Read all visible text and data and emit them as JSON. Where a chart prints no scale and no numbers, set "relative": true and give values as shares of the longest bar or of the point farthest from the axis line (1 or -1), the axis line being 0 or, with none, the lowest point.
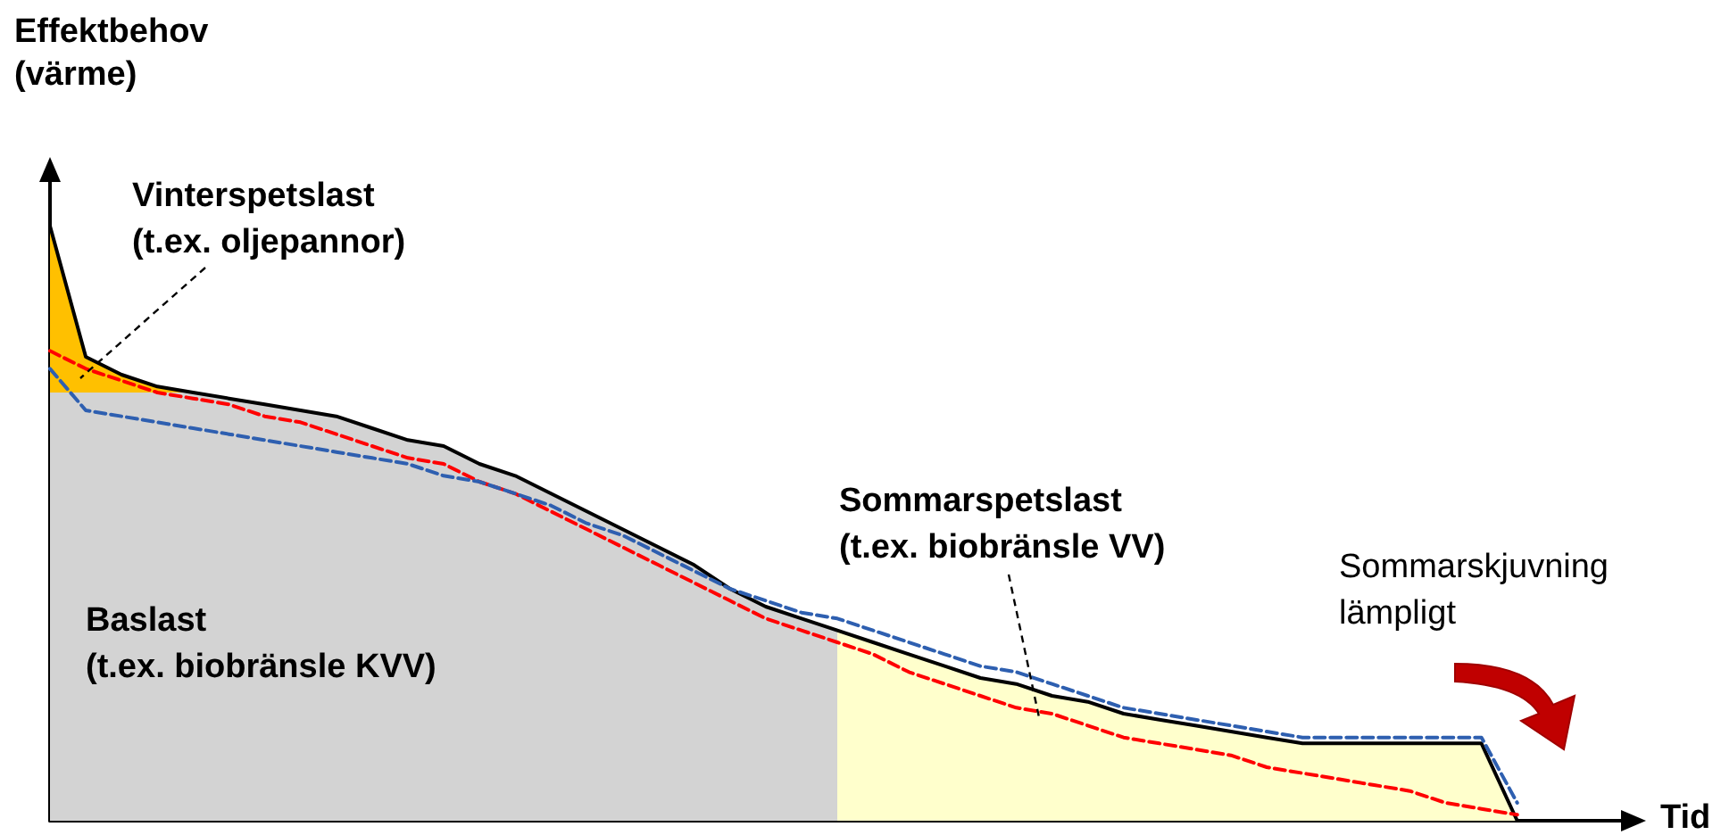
{
  "chart_data": {
    "type": "area",
    "relative": true,
    "ylabel": "Effektbehov\n(värme)",
    "xlabel": "Tid",
    "categories": [
      null,
      null,
      null,
      null,
      null,
      null,
      null,
      null,
      null,
      null,
      null,
      null,
      null,
      null,
      null,
      null,
      null,
      null,
      null,
      null,
      null,
      null,
      null,
      null,
      null,
      null,
      null,
      null,
      null,
      null,
      null,
      null,
      null,
      null,
      null,
      null,
      null,
      null,
      null,
      null,
      null,
      null,
      null,
      null,
      null
    ],
    "series": [
      {
        "color": "#ffc000",
        "values": [
          1.0,
          0.78,
          0.75,
          0.73,
          0.72,
          null,
          null,
          null,
          null,
          null,
          null,
          null,
          null,
          null,
          null,
          null,
          null,
          null,
          null,
          null,
          null,
          null,
          null,
          null,
          null,
          null,
          null,
          null,
          null,
          null,
          null,
          null,
          null,
          null,
          null,
          null,
          null,
          null,
          null,
          null,
          null,
          null,
          null,
          null,
          null
        ]
      },
      {
        "color": "#d3d3d3",
        "values": [
          0.72,
          0.72,
          0.72,
          0.72,
          0.72,
          0.71,
          0.7,
          0.69,
          0.68,
          0.66,
          0.64,
          0.63,
          0.6,
          0.58,
          0.55,
          0.52,
          0.49,
          0.46,
          0.43,
          0.39,
          0.36,
          0.34,
          0.32,
          null,
          null,
          null,
          null,
          null,
          null,
          null,
          null,
          null,
          null,
          null,
          null,
          null,
          null,
          null,
          null,
          null,
          null,
          null,
          null,
          null,
          null
        ]
      },
      {
        "color": "#ffffcc",
        "values": [
          null,
          null,
          null,
          null,
          null,
          null,
          null,
          null,
          null,
          null,
          null,
          null,
          null,
          null,
          null,
          null,
          null,
          null,
          null,
          null,
          null,
          null,
          0.32,
          0.3,
          0.28,
          0.26,
          0.24,
          0.23,
          0.21,
          0.2,
          0.18,
          0.17,
          0.16,
          0.15,
          0.14,
          0.13,
          0.13,
          0.13,
          0.13,
          0.13,
          0.13,
          0,
          null,
          null,
          null
        ]
      },
      {
        "type": "line",
        "color": "#000000",
        "values": [
          1.0,
          0.78,
          0.75,
          0.73,
          0.72,
          0.71,
          0.7,
          0.69,
          0.68,
          0.66,
          0.64,
          0.63,
          0.6,
          0.58,
          0.55,
          0.52,
          0.49,
          0.46,
          0.43,
          0.39,
          0.36,
          0.34,
          0.32,
          0.3,
          0.28,
          0.26,
          0.24,
          0.23,
          0.21,
          0.2,
          0.18,
          0.17,
          0.16,
          0.15,
          0.14,
          0.13,
          0.13,
          0.13,
          0.13,
          0.13,
          0.13,
          0,
          null,
          null,
          null
        ]
      },
      {
        "type": "line",
        "color": "#ff0000",
        "line_style": "dashed",
        "values": [
          0.79,
          0.76,
          0.74,
          0.72,
          0.71,
          0.7,
          0.68,
          0.67,
          0.65,
          0.63,
          0.61,
          0.6,
          0.57,
          0.55,
          0.52,
          0.49,
          0.46,
          0.43,
          0.4,
          0.37,
          0.34,
          0.32,
          0.3,
          0.28,
          0.25,
          0.23,
          0.21,
          0.19,
          0.18,
          0.16,
          0.14,
          0.13,
          0.12,
          0.11,
          0.09,
          0.08,
          0.07,
          0.06,
          0.05,
          0.03,
          0.02,
          0.01,
          null,
          null,
          null
        ]
      },
      {
        "type": "line",
        "color": "#2e5fb0",
        "line_style": "dashed",
        "values": [
          0.76,
          0.69,
          0.68,
          0.67,
          0.66,
          0.65,
          0.64,
          0.63,
          0.62,
          0.61,
          0.6,
          0.58,
          0.57,
          0.55,
          0.53,
          0.5,
          0.48,
          0.45,
          0.42,
          0.39,
          0.37,
          0.35,
          0.34,
          0.32,
          0.3,
          0.28,
          0.26,
          0.25,
          0.23,
          0.21,
          0.19,
          0.18,
          0.17,
          0.16,
          0.15,
          0.14,
          0.14,
          0.14,
          0.14,
          0.14,
          0.14,
          0.03,
          null,
          null,
          null
        ]
      }
    ],
    "annotations": [
      "Vinterspetslast\n(t.ex. oljepannor)",
      "Baslast\n(t.ex. biobränsle KVV)",
      "Sommarspetslast\n(t.ex. biobränsle VV)",
      "Sommarskjuvning\nlämpligt"
    ],
    "marker": "none",
    "grid": false
  }
}
